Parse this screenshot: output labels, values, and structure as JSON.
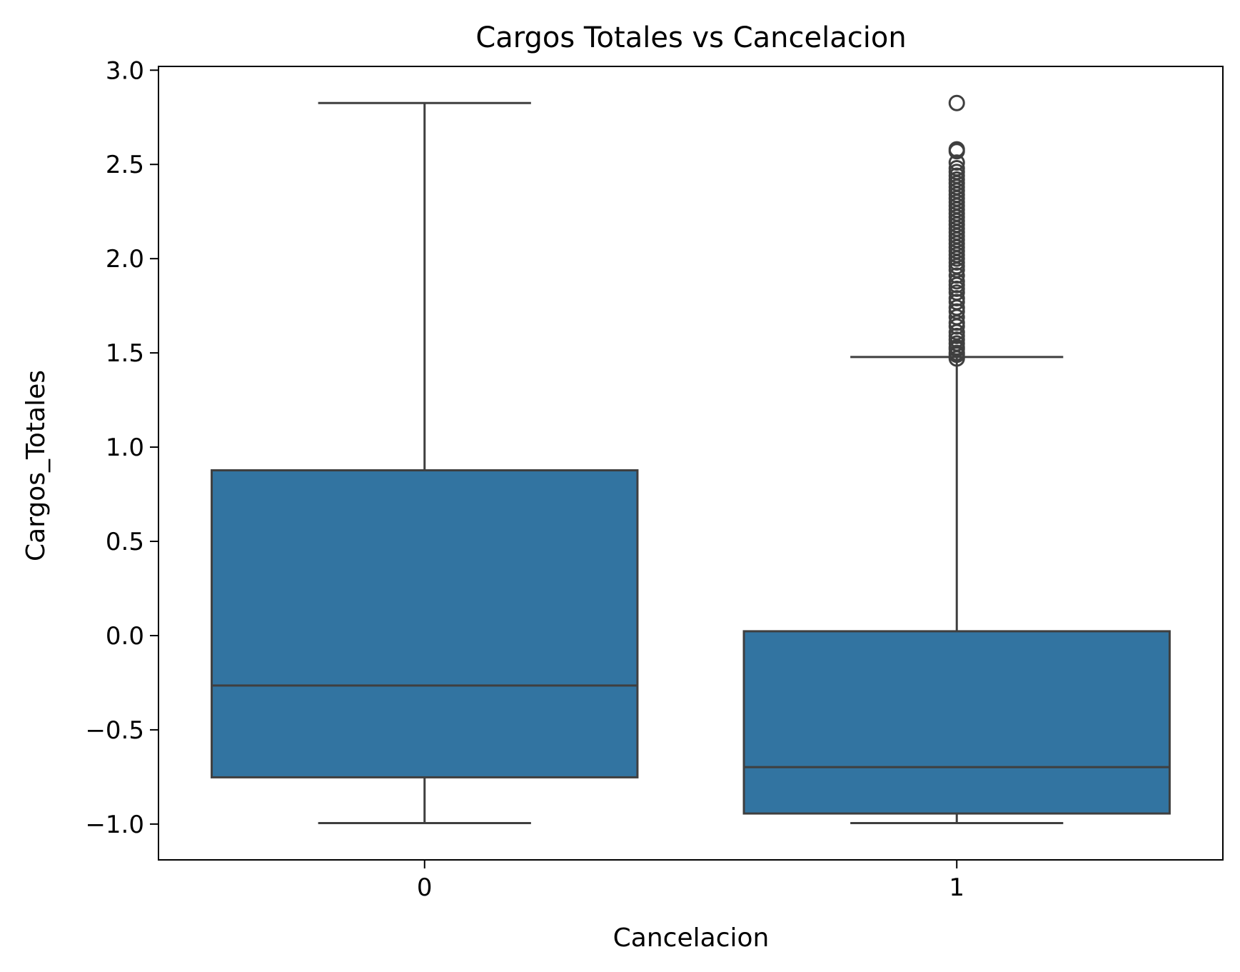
{
  "chart_data": {
    "type": "box",
    "title": "Cargos Totales vs Cancelacion",
    "xlabel": "Cancelacion",
    "ylabel": "Cargos_Totales",
    "ylim": [
      -1.19,
      3.02
    ],
    "yticks": [
      -1.0,
      -0.5,
      0.0,
      0.5,
      1.0,
      1.5,
      2.0,
      2.5,
      3.0
    ],
    "ytick_labels": [
      "−1.0",
      "−0.5",
      "0.0",
      "0.5",
      "1.0",
      "1.5",
      "2.0",
      "2.5",
      "3.0"
    ],
    "categories": [
      "0",
      "1"
    ],
    "grid": false,
    "legend": "none",
    "colors": {
      "box_fill": "#3274a1",
      "line": "#3f3f3f",
      "axes": "#000000"
    },
    "boxes": [
      {
        "category": "0",
        "whisker_low": -0.995,
        "q1": -0.752,
        "median": -0.265,
        "q3": 0.877,
        "whisker_high": 2.826,
        "outliers": []
      },
      {
        "category": "1",
        "whisker_low": -0.995,
        "q1": -0.944,
        "median": -0.698,
        "q3": 0.023,
        "whisker_high": 1.478,
        "outliers": [
          1.47,
          1.49,
          1.5,
          1.52,
          1.53,
          1.55,
          1.57,
          1.59,
          1.61,
          1.64,
          1.66,
          1.69,
          1.72,
          1.74,
          1.77,
          1.79,
          1.82,
          1.84,
          1.86,
          1.88,
          1.91,
          1.94,
          1.96,
          1.98,
          2.0,
          2.02,
          2.04,
          2.06,
          2.08,
          2.1,
          2.12,
          2.14,
          2.16,
          2.18,
          2.2,
          2.22,
          2.24,
          2.26,
          2.28,
          2.3,
          2.32,
          2.34,
          2.36,
          2.38,
          2.4,
          2.42,
          2.44,
          2.46,
          2.48,
          2.51,
          2.57,
          2.58,
          2.826
        ]
      }
    ]
  }
}
